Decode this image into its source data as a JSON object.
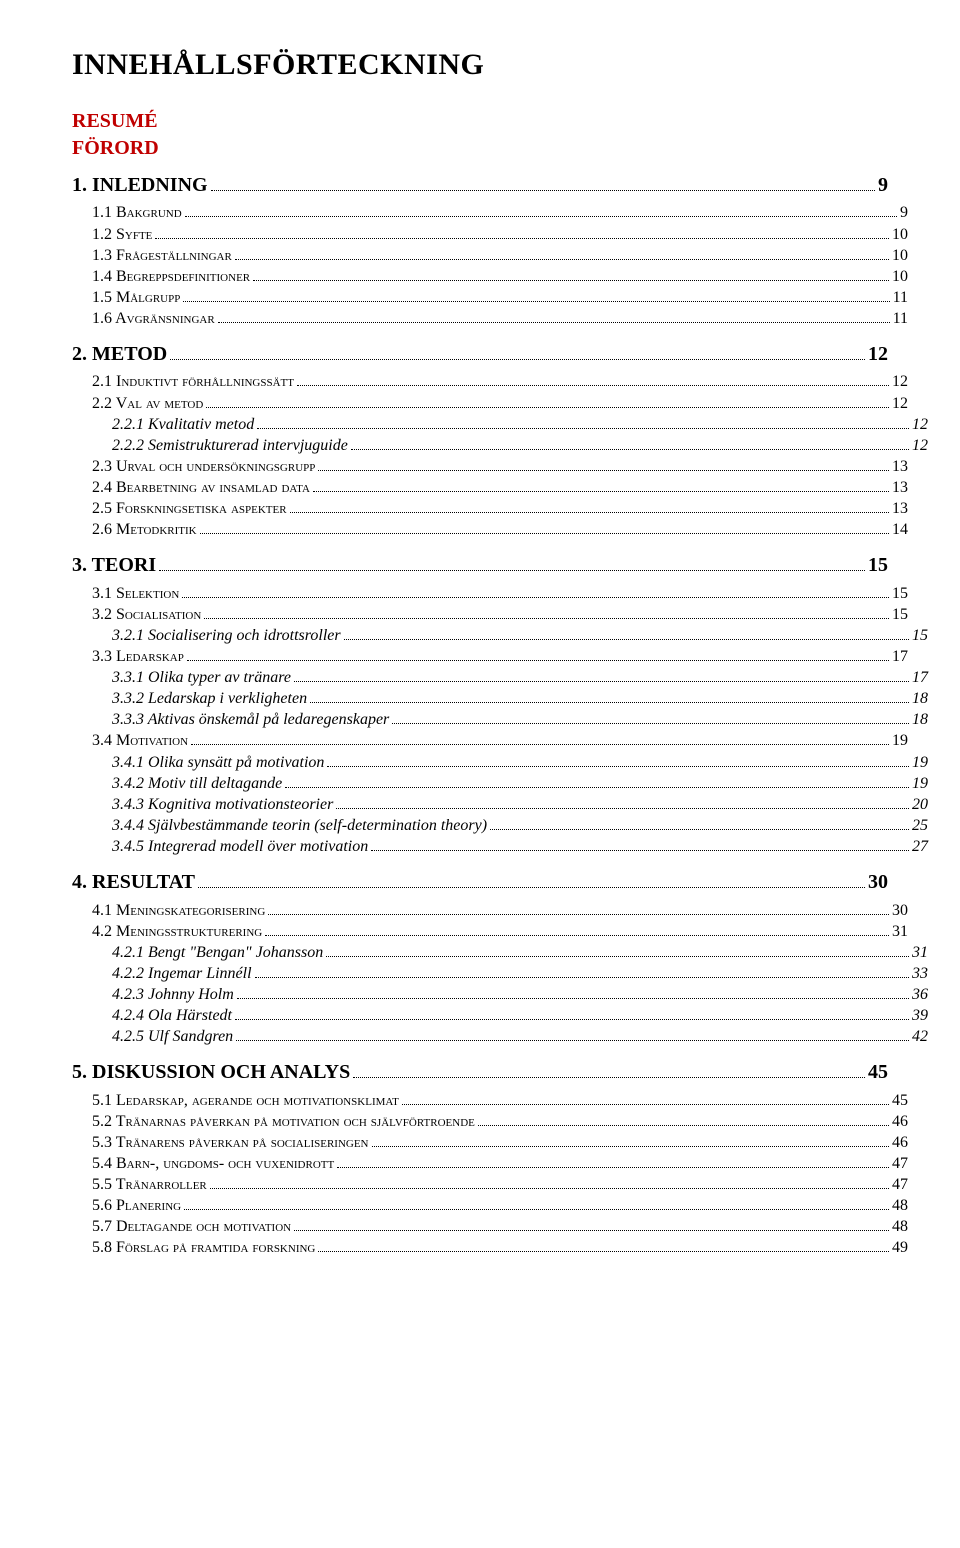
{
  "title": "INNEHÅLLSFÖRTECKNING",
  "front": [
    "RESUMÉ",
    "FÖRORD"
  ],
  "colors": {
    "heading": "#c00000",
    "text": "#000000",
    "background": "#ffffff"
  },
  "toc": [
    {
      "level": 1,
      "label": "1. INLEDNING",
      "page": "9"
    },
    {
      "level": 2,
      "label": "1.1 Bakgrund",
      "page": "9"
    },
    {
      "level": 2,
      "label": "1.2 Syfte",
      "page": "10"
    },
    {
      "level": 2,
      "label": "1.3 Frågeställningar",
      "page": "10"
    },
    {
      "level": 2,
      "label": "1.4 Begreppsdefinitioner",
      "page": "10"
    },
    {
      "level": 2,
      "label": "1.5 Målgrupp",
      "page": "11"
    },
    {
      "level": 2,
      "label": "1.6 Avgränsningar",
      "page": "11"
    },
    {
      "level": 1,
      "label": "2. METOD",
      "page": "12"
    },
    {
      "level": 2,
      "label": "2.1 Induktivt förhållningssätt",
      "page": "12"
    },
    {
      "level": 2,
      "label": "2.2 Val av metod",
      "page": "12"
    },
    {
      "level": 3,
      "label": "2.2.1 Kvalitativ metod",
      "page": "12"
    },
    {
      "level": 3,
      "label": "2.2.2 Semistrukturerad intervjuguide",
      "page": "12"
    },
    {
      "level": 2,
      "label": "2.3 Urval och undersökningsgrupp",
      "page": "13"
    },
    {
      "level": 2,
      "label": "2.4 Bearbetning av insamlad data",
      "page": "13"
    },
    {
      "level": 2,
      "label": "2.5 Forskningsetiska aspekter",
      "page": "13"
    },
    {
      "level": 2,
      "label": "2.6 Metodkritik",
      "page": "14"
    },
    {
      "level": 1,
      "label": "3. TEORI",
      "page": "15"
    },
    {
      "level": 2,
      "label": "3.1 Selektion",
      "page": "15"
    },
    {
      "level": 2,
      "label": "3.2 Socialisation",
      "page": "15"
    },
    {
      "level": 3,
      "label": "3.2.1 Socialisering och idrottsroller",
      "page": "15"
    },
    {
      "level": 2,
      "label": "3.3 Ledarskap",
      "page": "17"
    },
    {
      "level": 3,
      "label": "3.3.1 Olika typer av tränare",
      "page": "17"
    },
    {
      "level": 3,
      "label": "3.3.2 Ledarskap i verkligheten",
      "page": "18"
    },
    {
      "level": 3,
      "label": "3.3.3 Aktivas önskemål på ledaregenskaper",
      "page": "18"
    },
    {
      "level": 2,
      "label": "3.4 Motivation",
      "page": "19"
    },
    {
      "level": 3,
      "label": "3.4.1 Olika synsätt på motivation",
      "page": "19"
    },
    {
      "level": 3,
      "label": "3.4.2 Motiv till deltagande",
      "page": "19"
    },
    {
      "level": 3,
      "label": "3.4.3 Kognitiva motivationsteorier",
      "page": "20"
    },
    {
      "level": 3,
      "label": "3.4.4 Självbestämmande teorin (self-determination theory)",
      "page": "25"
    },
    {
      "level": 3,
      "label": "3.4.5 Integrerad modell över motivation",
      "page": "27"
    },
    {
      "level": 1,
      "label": "4. RESULTAT",
      "page": "30"
    },
    {
      "level": 2,
      "label": "4.1 Meningskategorisering",
      "page": "30"
    },
    {
      "level": 2,
      "label": "4.2 Meningsstrukturering",
      "page": "31"
    },
    {
      "level": 3,
      "label": "4.2.1 Bengt \"Bengan\" Johansson",
      "page": "31"
    },
    {
      "level": 3,
      "label": "4.2.2 Ingemar Linnéll",
      "page": "33"
    },
    {
      "level": 3,
      "label": "4.2.3 Johnny Holm",
      "page": "36"
    },
    {
      "level": 3,
      "label": "4.2.4 Ola Härstedt",
      "page": "39"
    },
    {
      "level": 3,
      "label": "4.2.5 Ulf Sandgren",
      "page": "42"
    },
    {
      "level": 1,
      "label": "5. DISKUSSION OCH ANALYS",
      "page": "45"
    },
    {
      "level": 2,
      "label": "5.1 Ledarskap, agerande och motivationsklimat",
      "page": "45"
    },
    {
      "level": 2,
      "label": "5.2 Tränarnas påverkan på motivation och självförtroende",
      "page": "46"
    },
    {
      "level": 2,
      "label": "5.3 Tränarens påverkan på socialiseringen",
      "page": "46"
    },
    {
      "level": 2,
      "label": "5.4 Barn-, ungdoms- och vuxenidrott",
      "page": "47"
    },
    {
      "level": 2,
      "label": "5.5 Tränarroller",
      "page": "47"
    },
    {
      "level": 2,
      "label": "5.6 Planering",
      "page": "48"
    },
    {
      "level": 2,
      "label": "5.7 Deltagande och motivation",
      "page": "48"
    },
    {
      "level": 2,
      "label": "5.8 Förslag på framtida forskning",
      "page": "49"
    }
  ]
}
